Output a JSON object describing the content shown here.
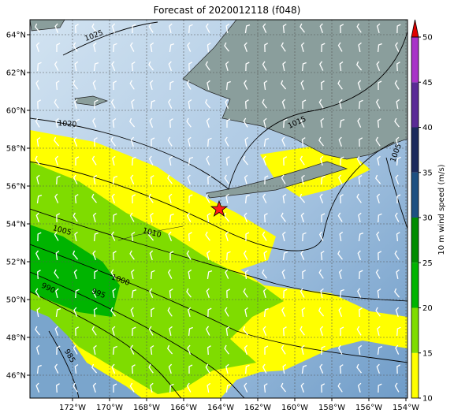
{
  "title": "Forecast of 2020012118 (f048)",
  "lon_labels": [
    "172°W",
    "170°W",
    "168°W",
    "166°W",
    "164°W",
    "162°W",
    "160°W",
    "158°W",
    "156°W",
    "154°W"
  ],
  "lat_labels": [
    "64°N",
    "62°N",
    "60°N",
    "58°N",
    "56°N",
    "54°N",
    "52°N",
    "50°N",
    "48°N",
    "46°N"
  ],
  "contour_labels": [
    "1025",
    "1020",
    "1015",
    "1010",
    "1005",
    "1000",
    "995",
    "990",
    "985",
    "1005"
  ],
  "colorbar": {
    "label": "10 m wind speed (m/s)",
    "ticks": [
      10,
      15,
      20,
      25,
      30,
      35,
      40,
      45,
      50
    ],
    "colors": [
      "#ffff00",
      "#7fdc00",
      "#00b400",
      "#008c00",
      "#1e5082",
      "#1c2a5c",
      "#5a2a96",
      "#a832c8"
    ],
    "extend_color": "#e00000"
  }
}
